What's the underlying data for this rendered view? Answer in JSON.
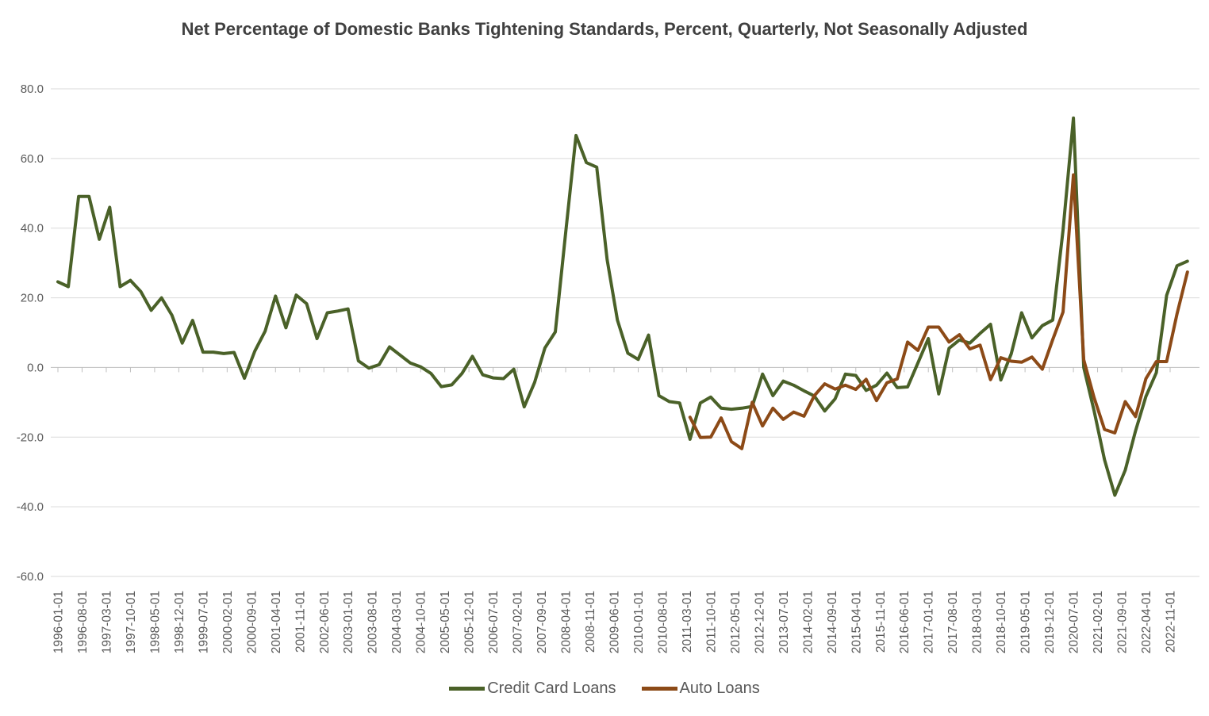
{
  "chart_data": {
    "type": "line",
    "title": "Net Percentage of Domestic Banks Tightening Standards, Percent, Quarterly, Not Seasonally Adjusted",
    "grid": true,
    "legend_position": "bottom",
    "background_color": "#ffffff",
    "gridline_color": "#d9d9d9",
    "axis_line_color": "#bfbfbf",
    "axis_label_color": "#595959",
    "title_color": "#404040",
    "y_axis": {
      "min": -60,
      "max": 80,
      "step": 20,
      "ticks": [
        {
          "value": 80,
          "label": "80.0"
        },
        {
          "value": 60,
          "label": "60.0"
        },
        {
          "value": 40,
          "label": "40.0"
        },
        {
          "value": 20,
          "label": "20.0"
        },
        {
          "value": 0,
          "label": "0.0"
        },
        {
          "value": -20,
          "label": "-20.0"
        },
        {
          "value": -40,
          "label": "-40.0"
        },
        {
          "value": -60,
          "label": "-60.0"
        }
      ]
    },
    "x_axis": {
      "tick_labels": [
        "1996-01-01",
        "1996-08-01",
        "1997-03-01",
        "1997-10-01",
        "1998-05-01",
        "1998-12-01",
        "1999-07-01",
        "2000-02-01",
        "2000-09-01",
        "2001-04-01",
        "2001-11-01",
        "2002-06-01",
        "2003-01-01",
        "2003-08-01",
        "2004-03-01",
        "2004-10-01",
        "2005-05-01",
        "2005-12-01",
        "2006-07-01",
        "2007-02-01",
        "2007-09-01",
        "2008-04-01",
        "2008-11-01",
        "2009-06-01",
        "2010-01-01",
        "2010-08-01",
        "2011-03-01",
        "2011-10-01",
        "2012-05-01",
        "2012-12-01",
        "2013-07-01",
        "2014-02-01",
        "2014-09-01",
        "2015-04-01",
        "2015-11-01",
        "2016-06-01",
        "2017-01-01",
        "2017-08-01",
        "2018-03-01",
        "2018-10-01",
        "2019-05-01",
        "2019-12-01",
        "2020-07-01",
        "2021-02-01",
        "2021-09-01",
        "2022-04-01",
        "2022-11-01"
      ]
    },
    "series": [
      {
        "name": "Credit Card Loans",
        "color": "#4a6128",
        "points": [
          [
            "1996-01-01",
            24.6
          ],
          [
            "1996-04-01",
            23.2
          ],
          [
            "1996-07-01",
            49.1
          ],
          [
            "1996-10-01",
            49.1
          ],
          [
            "1997-01-01",
            36.8
          ],
          [
            "1997-04-01",
            46.0
          ],
          [
            "1997-07-01",
            23.2
          ],
          [
            "1997-10-01",
            25.0
          ],
          [
            "1998-01-01",
            21.8
          ],
          [
            "1998-04-01",
            16.4
          ],
          [
            "1998-07-01",
            20.0
          ],
          [
            "1998-10-01",
            15.0
          ],
          [
            "1999-01-01",
            7.0
          ],
          [
            "1999-04-01",
            13.5
          ],
          [
            "1999-07-01",
            4.4
          ],
          [
            "1999-10-01",
            4.4
          ],
          [
            "2000-01-01",
            4.0
          ],
          [
            "2000-04-01",
            4.3
          ],
          [
            "2000-07-01",
            -3.1
          ],
          [
            "2000-10-01",
            4.7
          ],
          [
            "2001-01-01",
            10.4
          ],
          [
            "2001-04-01",
            20.5
          ],
          [
            "2001-07-01",
            11.4
          ],
          [
            "2001-10-01",
            20.8
          ],
          [
            "2002-01-01",
            18.3
          ],
          [
            "2002-04-01",
            8.3
          ],
          [
            "2002-07-01",
            15.7
          ],
          [
            "2002-10-01",
            16.2
          ],
          [
            "2003-01-01",
            16.8
          ],
          [
            "2003-04-01",
            1.9
          ],
          [
            "2003-07-01",
            -0.2
          ],
          [
            "2003-10-01",
            0.8
          ],
          [
            "2004-01-01",
            5.9
          ],
          [
            "2004-04-01",
            3.6
          ],
          [
            "2004-07-01",
            1.3
          ],
          [
            "2004-10-01",
            0.2
          ],
          [
            "2005-01-01",
            -1.7
          ],
          [
            "2005-04-01",
            -5.5
          ],
          [
            "2005-07-01",
            -5.0
          ],
          [
            "2005-10-01",
            -1.7
          ],
          [
            "2006-01-01",
            3.2
          ],
          [
            "2006-04-01",
            -2.1
          ],
          [
            "2006-07-01",
            -3.0
          ],
          [
            "2006-10-01",
            -3.2
          ],
          [
            "2007-01-01",
            -0.5
          ],
          [
            "2007-04-01",
            -11.3
          ],
          [
            "2007-07-01",
            -4.3
          ],
          [
            "2007-10-01",
            5.6
          ],
          [
            "2008-01-01",
            10.2
          ],
          [
            "2008-04-01",
            38.6
          ],
          [
            "2008-07-01",
            66.6
          ],
          [
            "2008-10-01",
            58.8
          ],
          [
            "2009-01-01",
            57.5
          ],
          [
            "2009-04-01",
            31.0
          ],
          [
            "2009-07-01",
            13.6
          ],
          [
            "2009-10-01",
            4.1
          ],
          [
            "2010-01-01",
            2.3
          ],
          [
            "2010-04-01",
            9.3
          ],
          [
            "2010-07-01",
            -8.1
          ],
          [
            "2010-10-01",
            -9.8
          ],
          [
            "2011-01-01",
            -10.2
          ],
          [
            "2011-04-01",
            -20.6
          ],
          [
            "2011-07-01",
            -10.2
          ],
          [
            "2011-10-01",
            -8.5
          ],
          [
            "2012-01-01",
            -11.7
          ],
          [
            "2012-04-01",
            -12.0
          ],
          [
            "2012-07-01",
            -11.7
          ],
          [
            "2012-10-01",
            -11.2
          ],
          [
            "2013-01-01",
            -1.9
          ],
          [
            "2013-04-01",
            -8.1
          ],
          [
            "2013-07-01",
            -3.9
          ],
          [
            "2013-10-01",
            -5.1
          ],
          [
            "2014-01-01",
            -6.7
          ],
          [
            "2014-04-01",
            -8.2
          ],
          [
            "2014-07-01",
            -12.5
          ],
          [
            "2014-10-01",
            -9.0
          ],
          [
            "2015-01-01",
            -1.9
          ],
          [
            "2015-04-01",
            -2.3
          ],
          [
            "2015-07-01",
            -6.6
          ],
          [
            "2015-10-01",
            -5.1
          ],
          [
            "2016-01-01",
            -1.6
          ],
          [
            "2016-04-01",
            -5.8
          ],
          [
            "2016-07-01",
            -5.6
          ],
          [
            "2016-10-01",
            1.3
          ],
          [
            "2017-01-01",
            8.3
          ],
          [
            "2017-04-01",
            -7.6
          ],
          [
            "2017-07-01",
            5.5
          ],
          [
            "2017-10-01",
            7.9
          ],
          [
            "2018-01-01",
            7.0
          ],
          [
            "2018-04-01",
            9.8
          ],
          [
            "2018-07-01",
            12.4
          ],
          [
            "2018-10-01",
            -3.6
          ],
          [
            "2019-01-01",
            3.9
          ],
          [
            "2019-04-01",
            15.7
          ],
          [
            "2019-07-01",
            8.5
          ],
          [
            "2019-10-01",
            12.0
          ],
          [
            "2020-01-01",
            13.6
          ],
          [
            "2020-04-01",
            39.4
          ],
          [
            "2020-07-01",
            71.6
          ],
          [
            "2020-10-01",
            0.0
          ],
          [
            "2021-01-01",
            -12.5
          ],
          [
            "2021-04-01",
            -26.5
          ],
          [
            "2021-07-01",
            -36.7
          ],
          [
            "2021-10-01",
            -29.5
          ],
          [
            "2022-01-01",
            -18.2
          ],
          [
            "2022-04-01",
            -8.3
          ],
          [
            "2022-07-01",
            -1.5
          ],
          [
            "2022-10-01",
            20.7
          ],
          [
            "2023-01-01",
            29.2
          ],
          [
            "2023-04-01",
            30.5
          ]
        ]
      },
      {
        "name": "Auto Loans",
        "color": "#8c4a17",
        "points": [
          [
            "2011-04-01",
            -14.3
          ],
          [
            "2011-07-01",
            -20.1
          ],
          [
            "2011-10-01",
            -20.0
          ],
          [
            "2012-01-01",
            -14.5
          ],
          [
            "2012-04-01",
            -21.3
          ],
          [
            "2012-07-01",
            -23.3
          ],
          [
            "2012-10-01",
            -10.0
          ],
          [
            "2013-01-01",
            -16.8
          ],
          [
            "2013-04-01",
            -11.7
          ],
          [
            "2013-07-01",
            -14.9
          ],
          [
            "2013-10-01",
            -12.8
          ],
          [
            "2014-01-01",
            -14.0
          ],
          [
            "2014-04-01",
            -8.1
          ],
          [
            "2014-07-01",
            -4.7
          ],
          [
            "2014-10-01",
            -6.2
          ],
          [
            "2015-01-01",
            -5.1
          ],
          [
            "2015-04-01",
            -6.3
          ],
          [
            "2015-07-01",
            -3.4
          ],
          [
            "2015-10-01",
            -9.5
          ],
          [
            "2016-01-01",
            -4.4
          ],
          [
            "2016-04-01",
            -3.3
          ],
          [
            "2016-07-01",
            7.3
          ],
          [
            "2016-10-01",
            4.9
          ],
          [
            "2017-01-01",
            11.6
          ],
          [
            "2017-04-01",
            11.6
          ],
          [
            "2017-07-01",
            7.3
          ],
          [
            "2017-10-01",
            9.4
          ],
          [
            "2018-01-01",
            5.3
          ],
          [
            "2018-04-01",
            6.4
          ],
          [
            "2018-07-01",
            -3.5
          ],
          [
            "2018-10-01",
            2.8
          ],
          [
            "2019-01-01",
            1.8
          ],
          [
            "2019-04-01",
            1.5
          ],
          [
            "2019-07-01",
            3.0
          ],
          [
            "2019-10-01",
            -0.5
          ],
          [
            "2020-01-01",
            8.0
          ],
          [
            "2020-04-01",
            15.9
          ],
          [
            "2020-07-01",
            55.3
          ],
          [
            "2020-10-01",
            2.2
          ],
          [
            "2021-01-01",
            -8.7
          ],
          [
            "2021-04-01",
            -17.8
          ],
          [
            "2021-07-01",
            -18.8
          ],
          [
            "2021-10-01",
            -9.8
          ],
          [
            "2022-01-01",
            -14.1
          ],
          [
            "2022-04-01",
            -3.2
          ],
          [
            "2022-07-01",
            1.7
          ],
          [
            "2022-10-01",
            1.7
          ],
          [
            "2023-01-01",
            15.4
          ],
          [
            "2023-04-01",
            27.4
          ]
        ]
      }
    ]
  }
}
